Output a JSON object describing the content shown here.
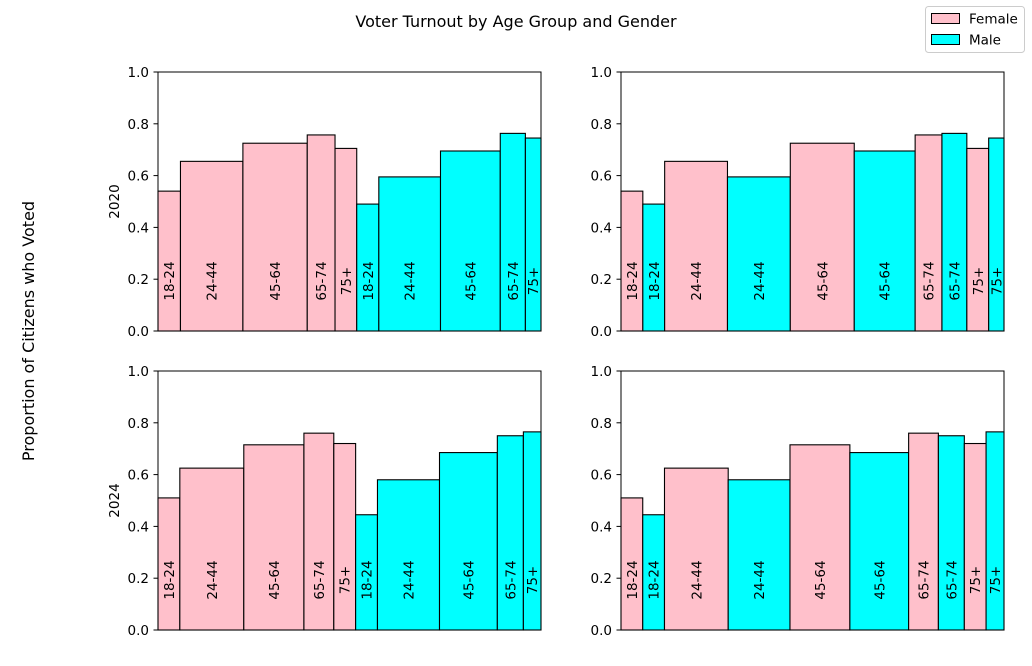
{
  "figure": {
    "title": "Voter Turnout by Age Group and Gender",
    "ylabel": "Proportion of Citizens who Voted"
  },
  "legend": {
    "placement": "top-right",
    "entries": [
      {
        "label": "Female",
        "color": "#ffc0cb"
      },
      {
        "label": "Male",
        "color": "#00ffff"
      }
    ]
  },
  "colors": {
    "Female": "#ffc0cb",
    "Male": "#00ffff",
    "edge": "#000000"
  },
  "chart_data": [
    {
      "type": "bar",
      "panel": "2020 grouped by gender",
      "row_label": "2020",
      "ylim": [
        0,
        1
      ],
      "yticks": [
        "0.0",
        "0.2",
        "0.4",
        "0.6",
        "0.8",
        "1.0"
      ],
      "bars": [
        {
          "label": "18-24",
          "gender": "Female",
          "value": 0.54,
          "share": 0.059
        },
        {
          "label": "24-44",
          "gender": "Female",
          "value": 0.655,
          "share": 0.164
        },
        {
          "label": "45-64",
          "gender": "Female",
          "value": 0.725,
          "share": 0.169
        },
        {
          "label": "65-74",
          "gender": "Female",
          "value": 0.757,
          "share": 0.073
        },
        {
          "label": "75+",
          "gender": "Female",
          "value": 0.705,
          "share": 0.057
        },
        {
          "label": "18-24",
          "gender": "Male",
          "value": 0.49,
          "share": 0.058
        },
        {
          "label": "24-44",
          "gender": "Male",
          "value": 0.595,
          "share": 0.162
        },
        {
          "label": "45-64",
          "gender": "Male",
          "value": 0.695,
          "share": 0.157
        },
        {
          "label": "65-74",
          "gender": "Male",
          "value": 0.763,
          "share": 0.066
        },
        {
          "label": "75+",
          "gender": "Male",
          "value": 0.745,
          "share": 0.041
        }
      ]
    },
    {
      "type": "bar",
      "panel": "2020 interleaved by age",
      "row_label": "",
      "ylim": [
        0,
        1
      ],
      "yticks": [
        "0.0",
        "0.2",
        "0.4",
        "0.6",
        "0.8",
        "1.0"
      ],
      "bars": [
        {
          "label": "18-24",
          "gender": "Female",
          "value": 0.54,
          "share": 0.057
        },
        {
          "label": "18-24",
          "gender": "Male",
          "value": 0.49,
          "share": 0.057
        },
        {
          "label": "24-44",
          "gender": "Female",
          "value": 0.655,
          "share": 0.164
        },
        {
          "label": "24-44",
          "gender": "Male",
          "value": 0.595,
          "share": 0.164
        },
        {
          "label": "45-64",
          "gender": "Female",
          "value": 0.725,
          "share": 0.167
        },
        {
          "label": "45-64",
          "gender": "Male",
          "value": 0.695,
          "share": 0.159
        },
        {
          "label": "65-74",
          "gender": "Female",
          "value": 0.757,
          "share": 0.07
        },
        {
          "label": "65-74",
          "gender": "Male",
          "value": 0.763,
          "share": 0.065
        },
        {
          "label": "75+",
          "gender": "Female",
          "value": 0.705,
          "share": 0.057
        },
        {
          "label": "75+",
          "gender": "Male",
          "value": 0.745,
          "share": 0.04
        }
      ]
    },
    {
      "type": "bar",
      "panel": "2024 grouped by gender",
      "row_label": "2024",
      "ylim": [
        0,
        1
      ],
      "yticks": [
        "0.0",
        "0.2",
        "0.4",
        "0.6",
        "0.8",
        "1.0"
      ],
      "bars": [
        {
          "label": "18-24",
          "gender": "Female",
          "value": 0.51,
          "share": 0.057
        },
        {
          "label": "24-44",
          "gender": "Female",
          "value": 0.625,
          "share": 0.167
        },
        {
          "label": "45-64",
          "gender": "Female",
          "value": 0.715,
          "share": 0.157
        },
        {
          "label": "65-74",
          "gender": "Female",
          "value": 0.76,
          "share": 0.078
        },
        {
          "label": "75+",
          "gender": "Female",
          "value": 0.72,
          "share": 0.057
        },
        {
          "label": "18-24",
          "gender": "Male",
          "value": 0.445,
          "share": 0.057
        },
        {
          "label": "24-44",
          "gender": "Male",
          "value": 0.58,
          "share": 0.162
        },
        {
          "label": "45-64",
          "gender": "Male",
          "value": 0.685,
          "share": 0.151
        },
        {
          "label": "65-74",
          "gender": "Male",
          "value": 0.75,
          "share": 0.068
        },
        {
          "label": "75+",
          "gender": "Male",
          "value": 0.765,
          "share": 0.046
        }
      ]
    },
    {
      "type": "bar",
      "panel": "2024 interleaved by age",
      "row_label": "",
      "ylim": [
        0,
        1
      ],
      "yticks": [
        "0.0",
        "0.2",
        "0.4",
        "0.6",
        "0.8",
        "1.0"
      ],
      "bars": [
        {
          "label": "18-24",
          "gender": "Female",
          "value": 0.51,
          "share": 0.057
        },
        {
          "label": "18-24",
          "gender": "Male",
          "value": 0.445,
          "share": 0.057
        },
        {
          "label": "24-44",
          "gender": "Female",
          "value": 0.625,
          "share": 0.167
        },
        {
          "label": "24-44",
          "gender": "Male",
          "value": 0.58,
          "share": 0.162
        },
        {
          "label": "45-64",
          "gender": "Female",
          "value": 0.715,
          "share": 0.157
        },
        {
          "label": "45-64",
          "gender": "Male",
          "value": 0.685,
          "share": 0.154
        },
        {
          "label": "65-74",
          "gender": "Female",
          "value": 0.76,
          "share": 0.078
        },
        {
          "label": "65-74",
          "gender": "Male",
          "value": 0.75,
          "share": 0.068
        },
        {
          "label": "75+",
          "gender": "Female",
          "value": 0.72,
          "share": 0.057
        },
        {
          "label": "75+",
          "gender": "Male",
          "value": 0.765,
          "share": 0.047
        }
      ]
    }
  ]
}
